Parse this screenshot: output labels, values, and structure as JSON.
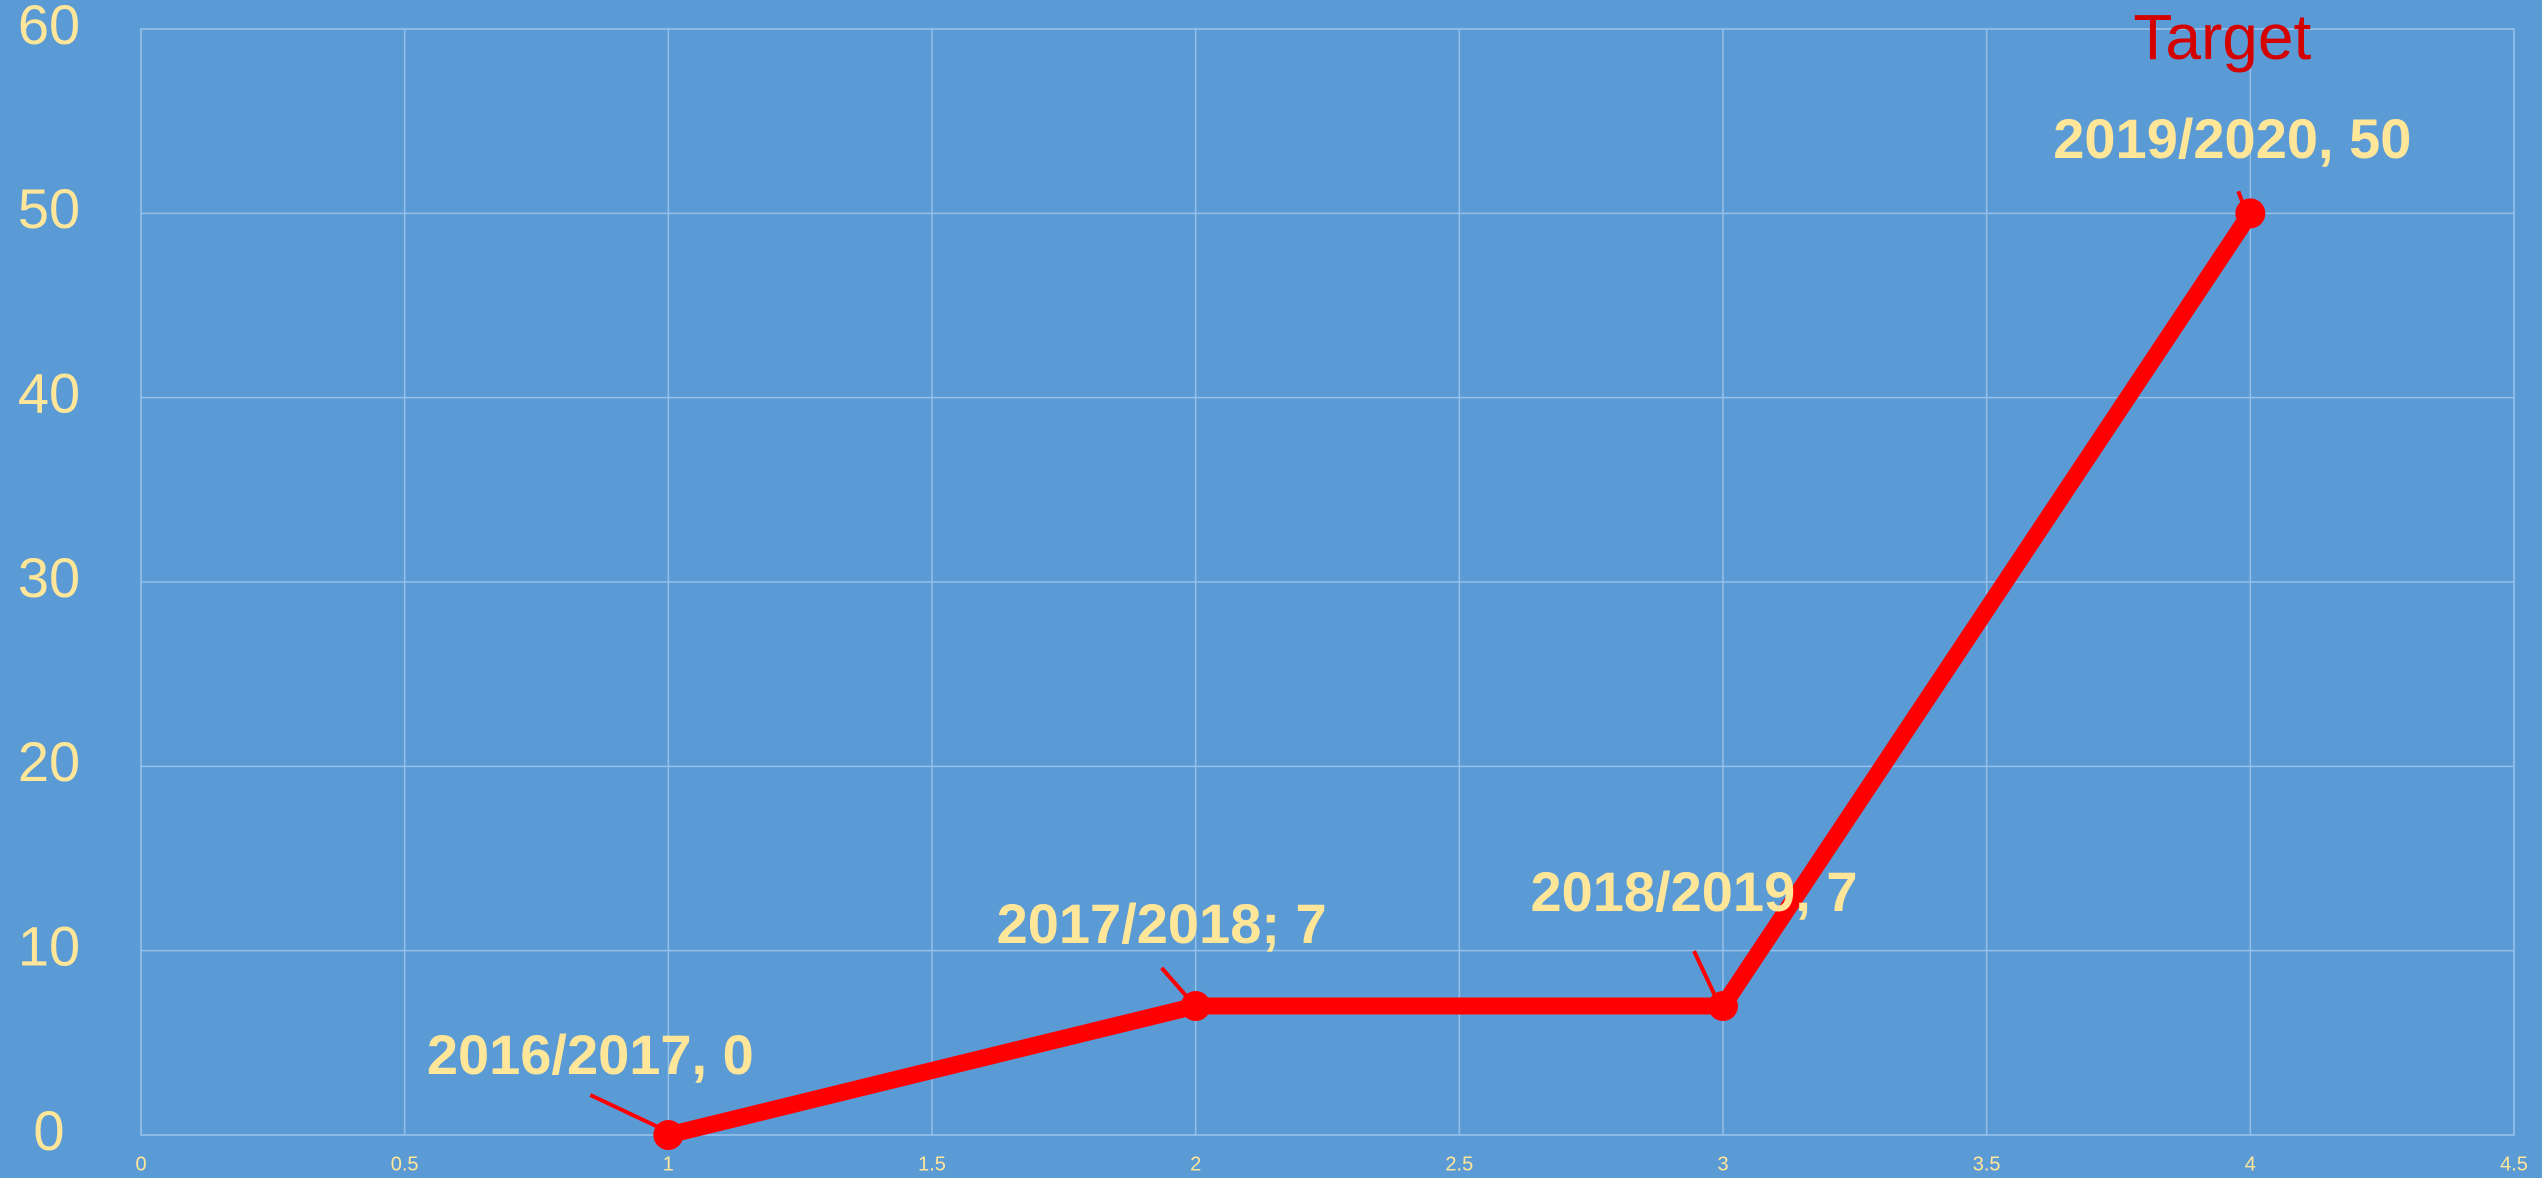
{
  "chart_data": {
    "type": "line",
    "x": [
      1,
      2,
      3,
      4
    ],
    "series": [
      {
        "color": "#ff0000",
        "values": [
          0,
          7,
          7,
          50
        ],
        "value_labels": [
          "2016/2017, 0",
          "2017/2018; 7",
          "2018/2019, 7",
          "2019/2020, 50"
        ]
      }
    ],
    "annotation": "Target",
    "xlim": [
      0,
      4.5
    ],
    "xticks": [
      0,
      0.5,
      1,
      1.5,
      2,
      2.5,
      3,
      3.5,
      4,
      4.5
    ],
    "ylim": [
      0,
      60
    ],
    "yticks": [
      0,
      10,
      20,
      30,
      40,
      50,
      60
    ],
    "grid": true
  }
}
